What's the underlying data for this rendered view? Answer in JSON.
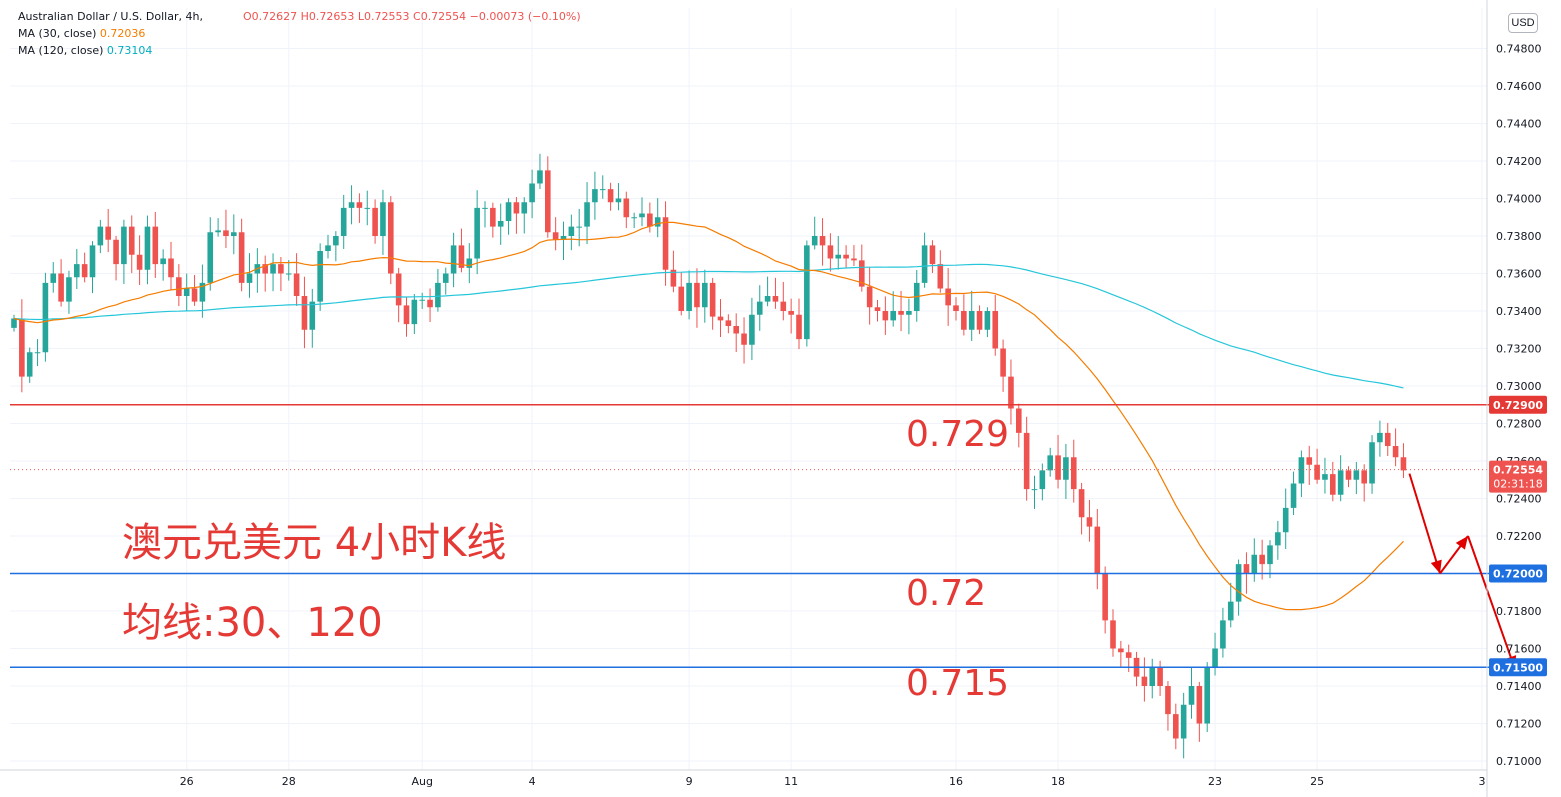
{
  "legend": {
    "symbol": "Australian Dollar / U.S. Dollar, 4h,",
    "ohlc": "O0.72627  H0.72653  L0.72553  C0.72554  −0.00073 (−0.10%)",
    "ma30_label": "MA (30, close)",
    "ma30_value": "0.72036",
    "ma120_label": "MA (120, close)",
    "ma120_value": "0.73104",
    "ma30_color": "#f57c00",
    "ma120_color": "#26c6da"
  },
  "currency_button": "USD",
  "annotations": {
    "title": "澳元兑美元 4小时K线",
    "subtitle": "均线:30、120",
    "level_729": "0.729",
    "level_72": "0.72",
    "level_715": "0.715"
  },
  "price_tags": {
    "r0729": "0.72900",
    "last": "0.72554",
    "countdown": "02:31:18",
    "r072": "0.72000",
    "r0715": "0.71500"
  },
  "colors": {
    "up": "#26a69a",
    "down": "#ef5350",
    "red_line": "#e53935",
    "blue_line": "#1e6fe0",
    "arrow": "#e00000"
  },
  "chart_data": {
    "type": "candlestick",
    "timeframe": "4h",
    "y_range": [
      0.70952,
      0.75016
    ],
    "y_ticks": [
      "0.71000",
      "0.71200",
      "0.71400",
      "0.71600",
      "0.71800",
      "0.72000",
      "0.72200",
      "0.72400",
      "0.72600",
      "0.72800",
      "0.73000",
      "0.73200",
      "0.73400",
      "0.73600",
      "0.73800",
      "0.74000",
      "0.74200",
      "0.74400",
      "0.74600",
      "0.74800"
    ],
    "x_ticks": [
      {
        "label": "26",
        "index": 22
      },
      {
        "label": "28",
        "index": 35
      },
      {
        "label": "Aug",
        "index": 52
      },
      {
        "label": "4",
        "index": 66
      },
      {
        "label": "9",
        "index": 86
      },
      {
        "label": "11",
        "index": 99
      },
      {
        "label": "16",
        "index": 120
      },
      {
        "label": "18",
        "index": 133
      },
      {
        "label": "23",
        "index": 153
      },
      {
        "label": "25",
        "index": 166
      },
      {
        "label": "3",
        "index": 187
      }
    ],
    "horizontal_levels": [
      {
        "price": 0.729,
        "color": "red",
        "tag": "0.72900"
      },
      {
        "price": 0.72,
        "color": "blue",
        "tag": "0.72000"
      },
      {
        "price": 0.715,
        "color": "blue",
        "tag": "0.71500"
      }
    ],
    "last_price": 0.72554,
    "closes": [
      0.7336,
      0.7305,
      0.7318,
      0.7318,
      0.7355,
      0.736,
      0.7345,
      0.7358,
      0.7365,
      0.7358,
      0.7375,
      0.7385,
      0.7378,
      0.7365,
      0.7385,
      0.737,
      0.7362,
      0.7385,
      0.7365,
      0.7368,
      0.7358,
      0.7348,
      0.7352,
      0.7345,
      0.7355,
      0.7382,
      0.7383,
      0.738,
      0.7382,
      0.7355,
      0.736,
      0.7365,
      0.736,
      0.7365,
      0.736,
      0.736,
      0.7348,
      0.733,
      0.7345,
      0.7372,
      0.7375,
      0.738,
      0.7395,
      0.7398,
      0.7395,
      0.7395,
      0.738,
      0.7398,
      0.736,
      0.7343,
      0.7333,
      0.7346,
      0.7346,
      0.7342,
      0.7355,
      0.736,
      0.7375,
      0.7363,
      0.7368,
      0.7395,
      0.7395,
      0.7385,
      0.7388,
      0.7398,
      0.7392,
      0.7398,
      0.7408,
      0.7415,
      0.7382,
      0.7378,
      0.738,
      0.7385,
      0.7385,
      0.7398,
      0.7405,
      0.7405,
      0.7398,
      0.74,
      0.739,
      0.739,
      0.7392,
      0.7385,
      0.739,
      0.7362,
      0.7353,
      0.734,
      0.7355,
      0.7342,
      0.7355,
      0.7337,
      0.7335,
      0.7332,
      0.7328,
      0.7322,
      0.7338,
      0.7345,
      0.7348,
      0.7345,
      0.734,
      0.7338,
      0.7325,
      0.7375,
      0.738,
      0.7375,
      0.7368,
      0.737,
      0.7368,
      0.7367,
      0.7353,
      0.7342,
      0.734,
      0.7335,
      0.734,
      0.7338,
      0.734,
      0.7355,
      0.7375,
      0.7365,
      0.7352,
      0.7343,
      0.734,
      0.733,
      0.734,
      0.733,
      0.734,
      0.732,
      0.7305,
      0.7288,
      0.7275,
      0.7245,
      0.7245,
      0.7255,
      0.7263,
      0.725,
      0.7262,
      0.7245,
      0.723,
      0.7225,
      0.72,
      0.7175,
      0.716,
      0.7158,
      0.7155,
      0.7145,
      0.714,
      0.715,
      0.714,
      0.7125,
      0.7112,
      0.713,
      0.714,
      0.712,
      0.715,
      0.716,
      0.7175,
      0.7185,
      0.7205,
      0.72,
      0.721,
      0.7205,
      0.7215,
      0.7222,
      0.7235,
      0.7248,
      0.7262,
      0.7258,
      0.725,
      0.7253,
      0.7242,
      0.7255,
      0.725,
      0.7255,
      0.7248,
      0.727,
      0.7275,
      0.7268,
      0.7262,
      0.7255
    ]
  }
}
